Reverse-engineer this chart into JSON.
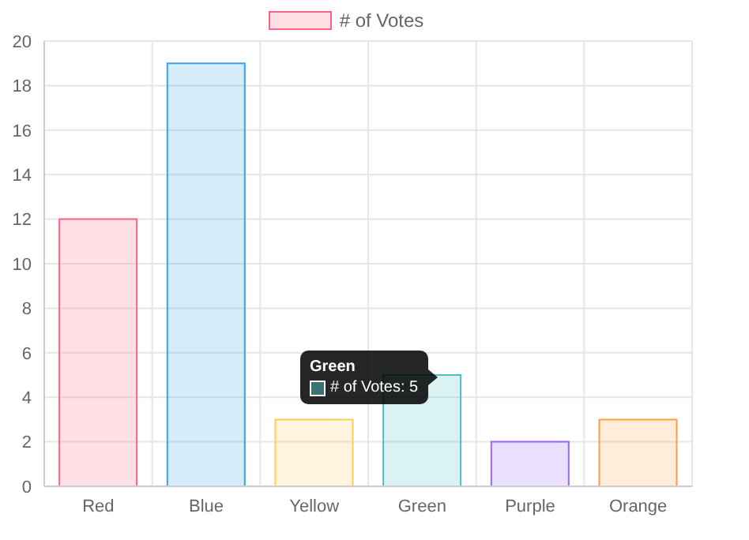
{
  "chart_data": {
    "type": "bar",
    "categories": [
      "Red",
      "Blue",
      "Yellow",
      "Green",
      "Purple",
      "Orange"
    ],
    "series": [
      {
        "name": "# of Votes",
        "colors": [
          "#ff6384",
          "#36a2eb",
          "#ffce56",
          "#4bc0c0",
          "#9966ff",
          "#ff9f40"
        ],
        "values": [
          12,
          19,
          3,
          5,
          2,
          3
        ]
      }
    ],
    "ylim": [
      0,
      20
    ],
    "yticks": [
      0,
      2,
      4,
      6,
      8,
      10,
      12,
      14,
      16,
      18,
      20
    ],
    "grid": true,
    "legend": "top",
    "annotations": [
      "Green",
      "# of Votes: 5"
    ]
  }
}
